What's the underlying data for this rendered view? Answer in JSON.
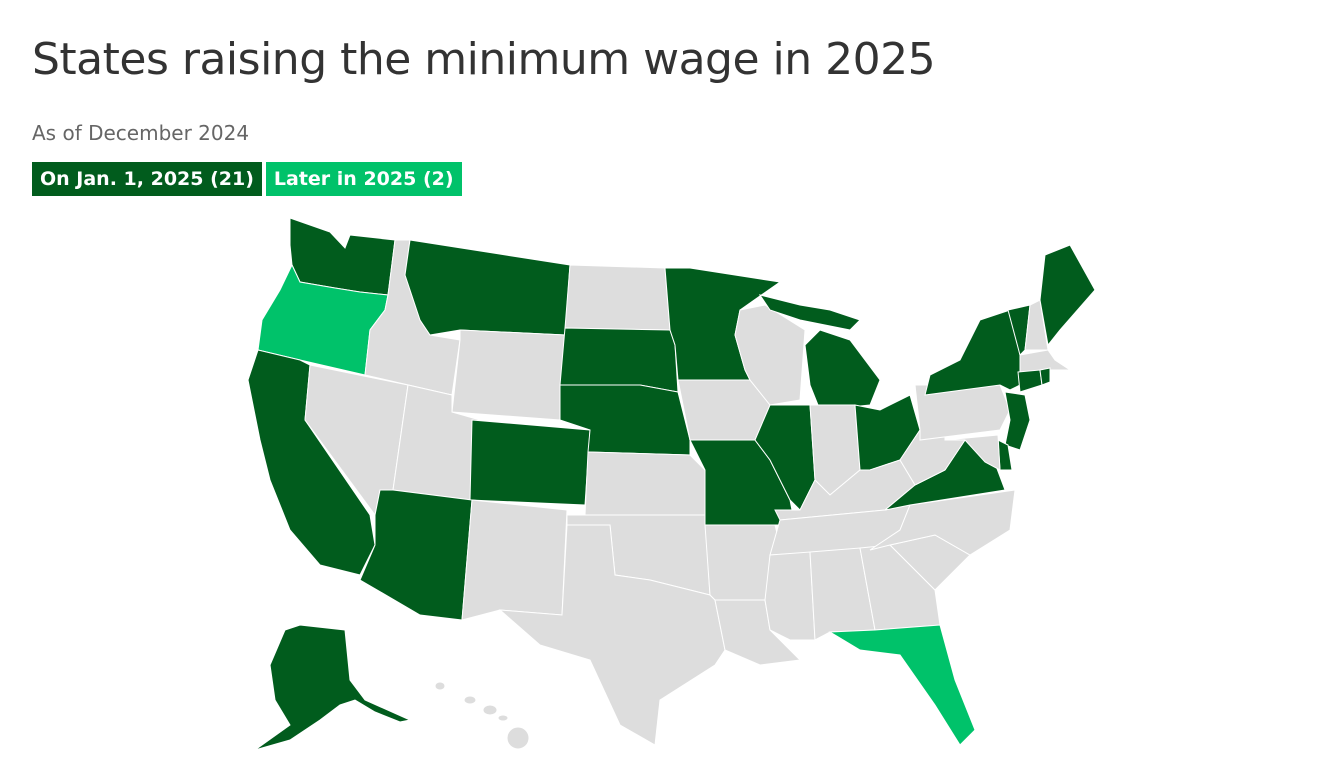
{
  "title": "States raising the minimum wage in 2025",
  "subtitle": "As of December 2024",
  "legend": [
    {
      "label": "On Jan. 1, 2025 (21)",
      "color": "#015c1d"
    },
    {
      "label": "Later in 2025 (2)",
      "color": "#00c26a"
    }
  ],
  "base_color": "#dddddd"
}
